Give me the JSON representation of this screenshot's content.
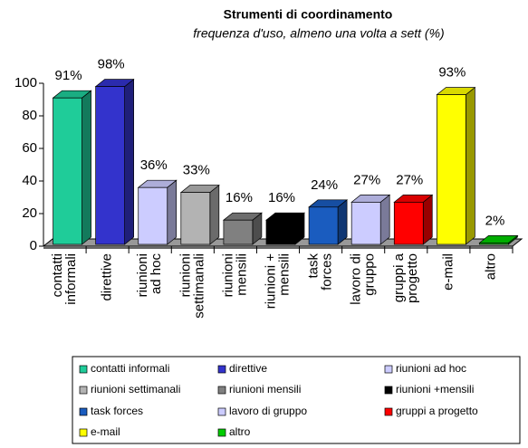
{
  "chart_data": {
    "type": "bar3d",
    "title": "Strumenti di coordinamento",
    "subtitle": "frequenza d'uso, almeno una volta a sett (%)",
    "categories": [
      "contatti informali",
      "direttive",
      "riunioni ad hoc",
      "riunioni settimanali",
      "riunioni mensili",
      "riunioni + mensili",
      "task forces",
      "lavoro di gruppo",
      "gruppi a progetto",
      "e-mail",
      "altro"
    ],
    "values": [
      91,
      98,
      36,
      33,
      16,
      16,
      24,
      27,
      27,
      93,
      2
    ],
    "value_labels": [
      "91%",
      "98%",
      "36%",
      "33%",
      "16%",
      "16%",
      "24%",
      "27%",
      "27%",
      "93%",
      "2%"
    ],
    "colors": [
      "#1fcc99",
      "#3333cc",
      "#ccccff",
      "#b3b3b3",
      "#808080",
      "#000000",
      "#1a5cbf",
      "#ccccff",
      "#ff0000",
      "#ffff00",
      "#00cc00"
    ],
    "legend": [
      "contatti informali",
      "direttive",
      "riunioni ad hoc",
      "riunioni settimanali",
      "riunioni mensili",
      "riunioni +mensili",
      "task forces",
      "lavoro di gruppo",
      "gruppi a progetto",
      "e-mail",
      "altro"
    ],
    "ylim": [
      0,
      100
    ],
    "yticks": [
      0,
      20,
      40,
      60,
      80,
      100
    ]
  }
}
